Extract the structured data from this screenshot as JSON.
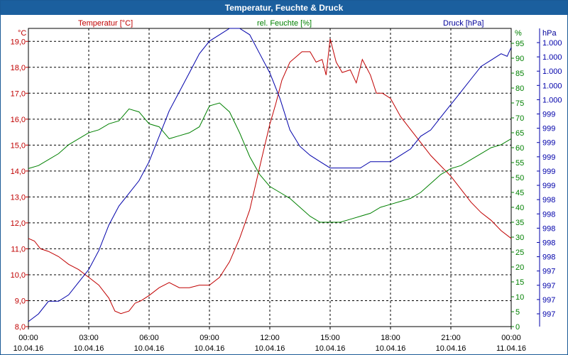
{
  "window": {
    "title": "Temperatur, Feuchte & Druck"
  },
  "colors": {
    "temperature": "#c00000",
    "humidity": "#008000",
    "pressure": "#0000aa",
    "titlebar": "#1b5f9e",
    "grid": "#000000"
  },
  "chart_data": {
    "type": "line",
    "title": "Temperatur, Feuchte & Druck",
    "grid": true,
    "x_ticks": [
      {
        "time": "00:00",
        "date": "10.04.16"
      },
      {
        "time": "03:00",
        "date": "10.04.16"
      },
      {
        "time": "06:00",
        "date": "10.04.16"
      },
      {
        "time": "09:00",
        "date": "10.04.16"
      },
      {
        "time": "12:00",
        "date": "10.04.16"
      },
      {
        "time": "15:00",
        "date": "10.04.16"
      },
      {
        "time": "18:00",
        "date": "10.04.16"
      },
      {
        "time": "21:00",
        "date": "10.04.16"
      },
      {
        "time": "00:00",
        "date": "11.04.16"
      }
    ],
    "xlim": [
      0,
      24
    ],
    "axes": {
      "temperature": {
        "label": "Temperatur [°C]",
        "unit": "°C",
        "ylim": [
          8.0,
          19.5
        ],
        "ticks": [
          "8,0",
          "9,0",
          "10,0",
          "11,0",
          "12,0",
          "13,0",
          "14,0",
          "15,0",
          "16,0",
          "17,0",
          "18,0",
          "19,0"
        ]
      },
      "humidity": {
        "label": "rel. Feuchte [%]",
        "unit": "%",
        "ylim": [
          0,
          100
        ],
        "ticks": [
          "0",
          "5",
          "10",
          "15",
          "20",
          "25",
          "30",
          "35",
          "40",
          "45",
          "50",
          "55",
          "60",
          "65",
          "70",
          "75",
          "80",
          "85",
          "90",
          "95"
        ]
      },
      "pressure": {
        "label": "Druck [hPa]",
        "unit": "hPa",
        "ticks": [
          "997",
          "997",
          "997",
          "997",
          "998",
          "998",
          "998",
          "998",
          "998",
          "999",
          "999",
          "999",
          "999",
          "999",
          "999",
          "1.000",
          "1.000",
          "1.000",
          "1.000",
          "1.000"
        ]
      }
    },
    "series": [
      {
        "name": "Temperatur [°C]",
        "axis": "temperature",
        "x": [
          0,
          0.3,
          0.6,
          1.0,
          1.5,
          2.0,
          2.5,
          3.0,
          3.5,
          4.0,
          4.3,
          4.6,
          5.0,
          5.3,
          5.6,
          6.0,
          6.5,
          7.0,
          7.5,
          8.0,
          8.5,
          9.0,
          9.5,
          10.0,
          10.5,
          11.0,
          11.3,
          11.6,
          12.0,
          12.3,
          12.6,
          13.0,
          13.3,
          13.6,
          14.0,
          14.3,
          14.6,
          14.8,
          15.0,
          15.3,
          15.6,
          16.0,
          16.3,
          16.6,
          17.0,
          17.3,
          17.6,
          18.0,
          18.5,
          19.0,
          19.5,
          20.0,
          20.5,
          21.0,
          21.5,
          22.0,
          22.5,
          23.0,
          23.5,
          24.0
        ],
        "y": [
          11.4,
          11.3,
          11.0,
          10.9,
          10.7,
          10.4,
          10.2,
          9.9,
          9.6,
          9.1,
          8.6,
          8.5,
          8.6,
          8.9,
          9.0,
          9.2,
          9.5,
          9.7,
          9.5,
          9.5,
          9.6,
          9.6,
          9.9,
          10.5,
          11.4,
          12.5,
          13.5,
          14.5,
          15.8,
          16.6,
          17.5,
          18.2,
          18.4,
          18.6,
          18.6,
          18.2,
          18.3,
          17.7,
          19.1,
          18.2,
          17.8,
          17.9,
          17.4,
          18.3,
          17.7,
          17.0,
          17.0,
          16.8,
          16.1,
          15.6,
          15.1,
          14.6,
          14.2,
          13.8,
          13.3,
          12.8,
          12.4,
          12.1,
          11.7,
          11.4
        ]
      },
      {
        "name": "rel. Feuchte [%]",
        "axis": "humidity",
        "x": [
          0,
          0.5,
          1.0,
          1.5,
          2.0,
          2.5,
          3.0,
          3.5,
          4.0,
          4.5,
          5.0,
          5.5,
          6.0,
          6.5,
          7.0,
          7.5,
          8.0,
          8.5,
          9.0,
          9.5,
          10.0,
          10.5,
          11.0,
          11.5,
          12.0,
          12.5,
          13.0,
          13.5,
          14.0,
          14.5,
          15.0,
          15.5,
          16.0,
          16.5,
          17.0,
          17.5,
          18.0,
          18.5,
          19.0,
          19.5,
          20.0,
          20.5,
          21.0,
          21.5,
          22.0,
          22.5,
          23.0,
          23.5,
          24.0
        ],
        "y": [
          53,
          54,
          56,
          58,
          61,
          63,
          65,
          66,
          68,
          69,
          73,
          72,
          68,
          67,
          63,
          64,
          65,
          67,
          74,
          75,
          72,
          65,
          57,
          51,
          47,
          45,
          43,
          40,
          37,
          35,
          35,
          35,
          36,
          37,
          38,
          40,
          41,
          42,
          43,
          45,
          48,
          51,
          53,
          54,
          56,
          58,
          60,
          61,
          63
        ]
      },
      {
        "name": "Druck [hPa]",
        "axis": "pressure",
        "x": [
          0,
          0.5,
          1.0,
          1.5,
          2.0,
          2.5,
          3.0,
          3.5,
          4.0,
          4.5,
          5.0,
          5.5,
          6.0,
          6.5,
          7.0,
          7.5,
          8.0,
          8.5,
          9.0,
          9.5,
          10.0,
          10.5,
          11.0,
          11.5,
          12.0,
          12.5,
          13.0,
          13.5,
          14.0,
          14.5,
          15.0,
          15.5,
          16.0,
          16.5,
          17.0,
          17.5,
          18.0,
          18.5,
          19.0,
          19.5,
          20.0,
          20.5,
          21.0,
          21.5,
          22.0,
          22.5,
          23.0,
          23.5,
          23.8,
          24.0
        ],
        "y": [
          997.04,
          997.1,
          997.2,
          997.2,
          997.25,
          997.35,
          997.45,
          997.6,
          997.8,
          997.95,
          998.05,
          998.15,
          998.3,
          998.5,
          998.7,
          998.85,
          999.0,
          999.15,
          999.25,
          999.3,
          999.35,
          999.35,
          999.3,
          999.15,
          999.0,
          998.8,
          998.55,
          998.42,
          998.35,
          998.3,
          998.25,
          998.25,
          998.25,
          998.25,
          998.3,
          998.3,
          998.3,
          998.35,
          998.4,
          998.5,
          998.55,
          998.65,
          998.75,
          998.85,
          998.95,
          999.05,
          999.1,
          999.15,
          999.13,
          999.2
        ]
      }
    ],
    "pressure_scale": {
      "data_range": [
        997.0,
        999.35
      ],
      "axis_range": [
        0,
        100
      ]
    }
  }
}
